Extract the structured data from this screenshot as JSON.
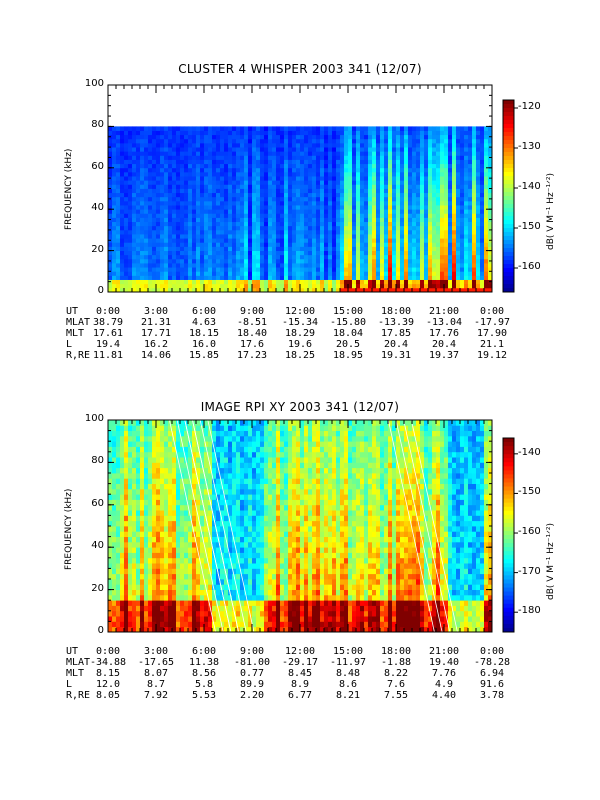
{
  "chart_data": [
    {
      "type": "heatmap",
      "title": "CLUSTER 4 WHISPER 2003 341 (12/07)",
      "ylabel": "FREQUENCY (kHz)",
      "yticks": [
        "0",
        "20",
        "40",
        "60",
        "80",
        "100"
      ],
      "ylim": [
        0,
        100
      ],
      "data_ylim": [
        0,
        80
      ],
      "colorbar": {
        "label": "dB( V M⁻¹ Hz⁻¹ᐟ²)",
        "ticks": [
          "-120",
          "-130",
          "-140",
          "-150",
          "-160"
        ],
        "range": [
          -166,
          -118
        ]
      },
      "xticks": [
        "0:00",
        "3:00",
        "6:00",
        "9:00",
        "12:00",
        "15:00",
        "18:00",
        "21:00",
        "0:00"
      ],
      "orbit_table": {
        "labels": [
          "UT",
          "MLAT",
          "MLT",
          "L",
          "R,RE"
        ],
        "rows": [
          [
            "0:00",
            "3:00",
            "6:00",
            "9:00",
            "12:00",
            "15:00",
            "18:00",
            "21:00",
            "0:00"
          ],
          [
            "38.79",
            "21.31",
            "4.63",
            "-8.51",
            "-15.34",
            "-15.80",
            "-13.39",
            "-13.04",
            "-17.97"
          ],
          [
            "17.61",
            "17.71",
            "18.15",
            "18.40",
            "18.29",
            "18.04",
            "17.85",
            "17.76",
            "17.90"
          ],
          [
            "19.4",
            "16.2",
            "16.0",
            "17.6",
            "19.6",
            "20.5",
            "20.4",
            "20.4",
            "21.1"
          ],
          [
            "11.81",
            "14.06",
            "15.85",
            "17.23",
            "18.25",
            "18.95",
            "19.31",
            "19.37",
            "19.12"
          ]
        ]
      }
    },
    {
      "type": "heatmap",
      "title": "IMAGE RPI XY 2003 341 (12/07)",
      "ylabel": "FREQUENCY (kHz)",
      "yticks": [
        "0",
        "20",
        "40",
        "60",
        "80",
        "100"
      ],
      "ylim": [
        0,
        100
      ],
      "colorbar": {
        "label": "dB( V M⁻¹ Hz⁻¹ᐟ²)",
        "ticks": [
          "-140",
          "-150",
          "-160",
          "-170",
          "-180"
        ],
        "range": [
          -185,
          -136
        ]
      },
      "xticks": [
        "0:00",
        "3:00",
        "6:00",
        "9:00",
        "12:00",
        "15:00",
        "18:00",
        "21:00",
        "0:00"
      ],
      "orbit_table": {
        "labels": [
          "UT",
          "MLAT",
          "MLT",
          "L",
          "R,RE"
        ],
        "rows": [
          [
            "0:00",
            "3:00",
            "6:00",
            "9:00",
            "12:00",
            "15:00",
            "18:00",
            "21:00",
            "0:00"
          ],
          [
            "-34.88",
            "-17.65",
            "11.38",
            "-81.00",
            "-29.17",
            "-11.97",
            "-1.88",
            "19.40",
            "-78.28"
          ],
          [
            "8.15",
            "8.07",
            "8.56",
            "0.77",
            "8.45",
            "8.48",
            "8.22",
            "7.76",
            "6.94"
          ],
          [
            "12.0",
            "8.7",
            "5.8",
            "89.9",
            "8.9",
            "8.6",
            "7.6",
            "4.9",
            "91.6"
          ],
          [
            "8.05",
            "7.92",
            "5.53",
            "2.20",
            "6.77",
            "8.21",
            "7.55",
            "4.40",
            "3.78"
          ]
        ]
      }
    }
  ]
}
